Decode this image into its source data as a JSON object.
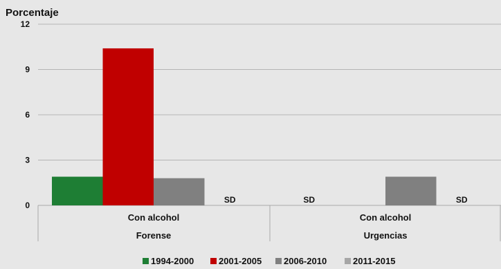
{
  "chart_data": {
    "type": "bar",
    "ylabel": "Porcentaje",
    "ylim": [
      0,
      12
    ],
    "yticks": [
      0,
      3,
      6,
      9,
      12
    ],
    "grid": true,
    "legend_position": "bottom",
    "groups": [
      {
        "sublabel": "Con alcohol",
        "label": "Forense"
      },
      {
        "sublabel": "Con alcohol",
        "label": "Urgencias"
      }
    ],
    "series": [
      {
        "name": "1994-2000",
        "color": "#1e7e34",
        "values": [
          1.9,
          null
        ],
        "value_labels": [
          "",
          "SD"
        ]
      },
      {
        "name": "2001-2005",
        "color": "#c00000",
        "values": [
          10.4,
          null
        ],
        "value_labels": [
          "",
          ""
        ]
      },
      {
        "name": "2006-2010",
        "color": "#808080",
        "values": [
          1.8,
          1.9
        ],
        "value_labels": [
          "",
          ""
        ]
      },
      {
        "name": "2011-2015",
        "color": "#a6a6a6",
        "values": [
          null,
          null
        ],
        "value_labels": [
          "SD",
          "SD"
        ]
      }
    ]
  }
}
